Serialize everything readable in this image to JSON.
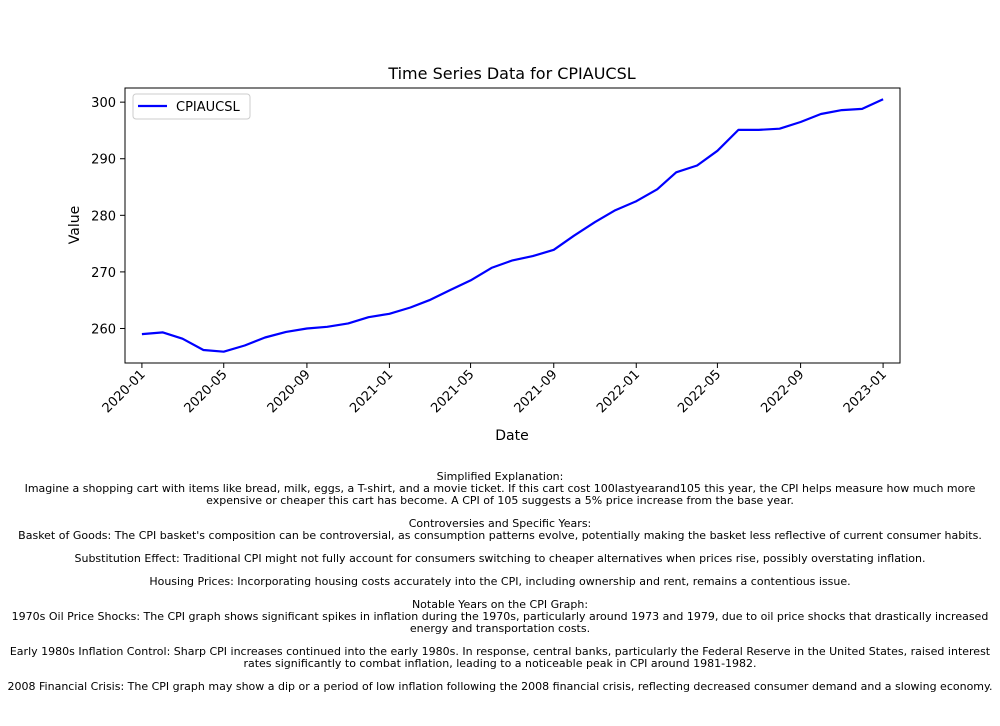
{
  "chart_data": {
    "type": "line",
    "title": "Time Series Data for CPIAUCSL",
    "xlabel": "Date",
    "ylabel": "Value",
    "legend": {
      "placement": "top-left",
      "entries": [
        "CPIAUCSL"
      ]
    },
    "grid": false,
    "x_ticks": [
      "2020-01",
      "2020-05",
      "2020-09",
      "2021-01",
      "2021-05",
      "2021-09",
      "2022-01",
      "2022-05",
      "2022-09",
      "2023-01"
    ],
    "y_ticks": [
      260,
      270,
      280,
      290,
      300
    ],
    "ylim": [
      253.9,
      302.5
    ],
    "xlim": [
      "2019-12-07",
      "2023-01-26"
    ],
    "series": [
      {
        "name": "CPIAUCSL",
        "color": "#0000ff",
        "x": [
          "2020-01",
          "2020-02",
          "2020-03",
          "2020-04",
          "2020-05",
          "2020-06",
          "2020-07",
          "2020-08",
          "2020-09",
          "2020-10",
          "2020-11",
          "2020-12",
          "2021-01",
          "2021-02",
          "2021-03",
          "2021-04",
          "2021-05",
          "2021-06",
          "2021-07",
          "2021-08",
          "2021-09",
          "2021-10",
          "2021-11",
          "2021-12",
          "2022-01",
          "2022-02",
          "2022-03",
          "2022-04",
          "2022-05",
          "2022-06",
          "2022-07",
          "2022-08",
          "2022-09",
          "2022-10",
          "2022-11",
          "2022-12",
          "2023-01"
        ],
        "values": [
          259.0,
          259.3,
          258.2,
          256.2,
          255.9,
          257.0,
          258.4,
          259.4,
          260.0,
          260.3,
          260.9,
          262.0,
          262.6,
          263.7,
          265.0,
          266.8,
          268.5,
          270.7,
          272.0,
          272.8,
          273.9,
          276.4,
          278.8,
          280.9,
          282.5,
          284.6,
          287.6,
          288.8,
          291.4,
          295.1,
          295.1,
          295.3,
          296.5,
          297.9,
          298.6,
          298.8,
          300.5
        ]
      }
    ]
  },
  "notes": {
    "heading": "Simplified Explanation:",
    "explanation_l1": "Imagine a shopping cart with items like bread, milk, eggs, a T-shirt, and a movie ticket. If this cart cost 100lastyearand105 this year, the CPI helps measure how much more",
    "explanation_l2": "expensive or cheaper this cart has become. A CPI of 105 suggests a 5% price increase from the base year.",
    "controversies_heading": "Controversies and Specific Years:",
    "basket": "Basket of Goods: The CPI basket's composition can be controversial, as consumption patterns evolve, potentially making the basket less reflective of current consumer habits.",
    "substitution": "Substitution Effect: Traditional CPI might not fully account for consumers switching to cheaper alternatives when prices rise, possibly overstating inflation.",
    "housing": "Housing Prices: Incorporating housing costs accurately into the CPI, including ownership and rent, remains a contentious issue.",
    "notable_heading": "Notable Years on the CPI Graph:",
    "oil_l1": "1970s Oil Price Shocks: The CPI graph shows significant spikes in inflation during the 1970s, particularly around 1973 and 1979, due to oil price shocks that drastically increased",
    "oil_l2": "energy and transportation costs.",
    "early80s_l1": "Early 1980s Inflation Control: Sharp CPI increases continued into the early 1980s. In response, central banks, particularly the Federal Reserve in the United States, raised interest",
    "early80s_l2": "rates significantly to combat inflation, leading to a noticeable peak in CPI around 1981-1982.",
    "crisis2008": "2008 Financial Crisis: The CPI graph may show a dip or a period of low inflation following the 2008 financial crisis, reflecting decreased consumer demand and a slowing economy."
  }
}
